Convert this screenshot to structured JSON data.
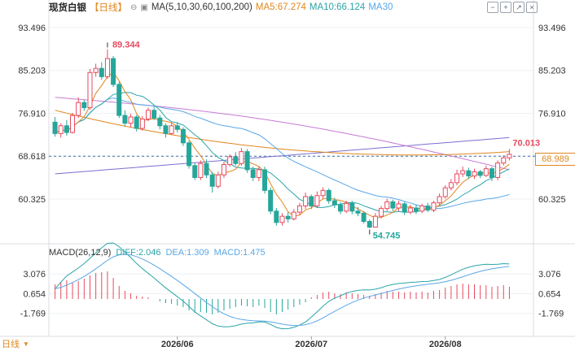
{
  "header": {
    "symbol": "现货白银",
    "period": "【日线】",
    "ma_config": "MA(5,10,30,60,100,200)",
    "ma5": "MA5:67.274",
    "ma10": "MA10:66.124",
    "ma30": "MA30"
  },
  "macd_header": {
    "config": "MACD(26,12,9)",
    "diff": "DIFF:2.046",
    "dea": "DEA:1.309",
    "macd": "MACD:1.475"
  },
  "bottom_bar": {
    "period_label": "日线"
  },
  "current_price_label": "68.989",
  "colors": {
    "up": "#e84a5f",
    "down": "#26a69a",
    "ma5": "#e0871f",
    "ma10": "#2ba4a8",
    "ma30": "#5aa7e6",
    "ma60": "#e0871f",
    "ma100": "#c77ad6",
    "ma200": "#7b6fd0"
  },
  "chart_data": {
    "type": "candlestick",
    "price_ticks": [
      93.496,
      85.203,
      76.91,
      68.618,
      60.325
    ],
    "price_range": [
      52.0,
      96.0
    ],
    "macd_ticks": [
      3.076,
      0.654,
      -1.769
    ],
    "macd_range": [
      -4.2,
      5.0
    ],
    "date_labels": [
      "2026/06",
      "2026/07",
      "2026/08"
    ],
    "date_label_index": [
      21,
      44,
      67
    ],
    "annotations": {
      "high": "89.344",
      "low": "54.745",
      "last": "70.013"
    },
    "reference_line": 68.618,
    "candles": [
      [
        75.2,
        73.0,
        76.2,
        72.4
      ],
      [
        73.0,
        74.5,
        75.0,
        72.2
      ],
      [
        74.5,
        73.2,
        75.6,
        72.6
      ],
      [
        73.2,
        76.5,
        77.0,
        73.0
      ],
      [
        76.5,
        79.0,
        80.0,
        76.0
      ],
      [
        79.0,
        78.0,
        79.5,
        77.4
      ],
      [
        78.0,
        84.8,
        85.5,
        77.6
      ],
      [
        84.8,
        85.6,
        86.5,
        84.0
      ],
      [
        85.6,
        84.0,
        86.8,
        83.4
      ],
      [
        84.0,
        87.5,
        89.3,
        83.6
      ],
      [
        87.5,
        82.5,
        88.0,
        82.0
      ],
      [
        82.5,
        76.5,
        83.0,
        76.0
      ],
      [
        76.5,
        75.0,
        77.5,
        74.4
      ],
      [
        75.0,
        76.2,
        76.8,
        74.2
      ],
      [
        76.2,
        74.0,
        76.6,
        73.4
      ],
      [
        74.0,
        75.8,
        76.4,
        73.6
      ],
      [
        75.8,
        77.5,
        78.0,
        75.4
      ],
      [
        77.5,
        76.0,
        78.2,
        75.6
      ],
      [
        76.0,
        74.5,
        76.6,
        73.8
      ],
      [
        74.5,
        73.0,
        75.0,
        72.2
      ],
      [
        73.0,
        74.5,
        75.0,
        72.8
      ],
      [
        74.5,
        73.8,
        75.2,
        73.2
      ],
      [
        73.8,
        71.2,
        74.2,
        70.6
      ],
      [
        71.2,
        66.8,
        71.6,
        66.2
      ],
      [
        66.8,
        64.5,
        67.4,
        64.0
      ],
      [
        64.5,
        67.2,
        67.8,
        64.0
      ],
      [
        67.2,
        65.0,
        68.0,
        64.4
      ],
      [
        65.0,
        62.8,
        65.6,
        61.6
      ],
      [
        62.8,
        65.0,
        65.6,
        62.4
      ],
      [
        65.0,
        67.0,
        67.6,
        64.4
      ],
      [
        67.0,
        68.5,
        69.0,
        66.6
      ],
      [
        68.5,
        67.2,
        69.4,
        66.8
      ],
      [
        67.2,
        69.5,
        70.2,
        66.8
      ],
      [
        69.5,
        66.0,
        70.0,
        65.4
      ],
      [
        66.0,
        64.5,
        66.6,
        63.8
      ],
      [
        64.5,
        66.0,
        66.6,
        63.8
      ],
      [
        66.0,
        62.0,
        66.6,
        61.4
      ],
      [
        62.0,
        58.0,
        62.6,
        57.4
      ],
      [
        58.0,
        55.8,
        58.6,
        55.2
      ],
      [
        55.8,
        57.0,
        57.6,
        55.2
      ],
      [
        57.0,
        56.5,
        57.8,
        55.8
      ],
      [
        56.5,
        57.8,
        58.4,
        56.2
      ],
      [
        57.8,
        59.0,
        59.6,
        57.2
      ],
      [
        59.0,
        60.8,
        61.6,
        58.4
      ],
      [
        60.8,
        59.0,
        61.2,
        58.4
      ],
      [
        59.0,
        61.0,
        61.8,
        58.6
      ],
      [
        61.0,
        62.0,
        62.6,
        60.4
      ],
      [
        62.0,
        60.0,
        62.4,
        59.4
      ],
      [
        60.0,
        59.2,
        60.6,
        58.6
      ],
      [
        59.2,
        58.0,
        59.8,
        57.4
      ],
      [
        58.0,
        59.5,
        60.0,
        57.6
      ],
      [
        59.5,
        58.0,
        60.0,
        57.4
      ],
      [
        58.0,
        57.6,
        58.8,
        57.0
      ],
      [
        57.6,
        56.0,
        58.0,
        55.6
      ],
      [
        56.0,
        54.9,
        56.4,
        54.7
      ],
      [
        54.9,
        57.0,
        57.6,
        54.8
      ],
      [
        57.0,
        58.5,
        59.0,
        56.6
      ],
      [
        58.5,
        59.8,
        60.4,
        58.0
      ],
      [
        59.8,
        58.6,
        60.2,
        58.0
      ],
      [
        58.6,
        59.4,
        60.0,
        58.0
      ],
      [
        59.4,
        57.8,
        59.8,
        57.2
      ],
      [
        57.8,
        58.6,
        59.2,
        57.4
      ],
      [
        58.6,
        58.0,
        59.2,
        57.4
      ],
      [
        58.0,
        59.0,
        59.4,
        57.6
      ],
      [
        59.0,
        58.2,
        59.6,
        57.8
      ],
      [
        58.2,
        59.6,
        60.0,
        57.8
      ],
      [
        59.6,
        60.8,
        61.4,
        59.2
      ],
      [
        60.8,
        62.5,
        63.0,
        60.4
      ],
      [
        62.5,
        63.5,
        64.2,
        62.0
      ],
      [
        63.5,
        65.2,
        66.0,
        63.0
      ],
      [
        65.2,
        65.8,
        66.6,
        64.6
      ],
      [
        65.8,
        64.8,
        66.4,
        64.2
      ],
      [
        64.8,
        65.6,
        66.2,
        64.2
      ],
      [
        65.6,
        64.9,
        66.0,
        64.4
      ],
      [
        64.9,
        66.2,
        66.8,
        64.6
      ],
      [
        66.2,
        64.5,
        66.6,
        63.8
      ],
      [
        64.5,
        67.3,
        67.8,
        64.0
      ],
      [
        67.3,
        68.3,
        68.8,
        66.8
      ],
      [
        68.3,
        68.99,
        70.01,
        67.8
      ]
    ],
    "macd_hist": [
      1.8,
      2.1,
      2.3,
      2.0,
      2.2,
      2.5,
      2.9,
      3.2,
      3.3,
      3.4,
      2.6,
      1.6,
      1.0,
      0.7,
      0.4,
      0.3,
      0.2,
      0.0,
      -0.3,
      -0.5,
      -0.6,
      -0.8,
      -1.0,
      -1.4,
      -1.7,
      -1.6,
      -1.7,
      -1.9,
      -1.7,
      -1.4,
      -1.2,
      -1.0,
      -0.8,
      -0.9,
      -1.0,
      -0.8,
      -1.1,
      -1.6,
      -1.9,
      -1.6,
      -1.3,
      -1.0,
      -0.7,
      -0.4,
      0.2,
      0.5,
      0.8,
      0.9,
      0.7,
      0.6,
      0.8,
      0.7,
      0.6,
      0.5,
      0.4,
      0.6,
      0.8,
      1.0,
      0.9,
      0.9,
      0.8,
      0.9,
      0.8,
      0.9,
      0.8,
      1.0,
      1.1,
      1.4,
      1.6,
      1.8,
      1.9,
      1.8,
      1.8,
      1.7,
      1.7,
      1.5,
      1.6,
      1.7,
      1.5
    ]
  }
}
